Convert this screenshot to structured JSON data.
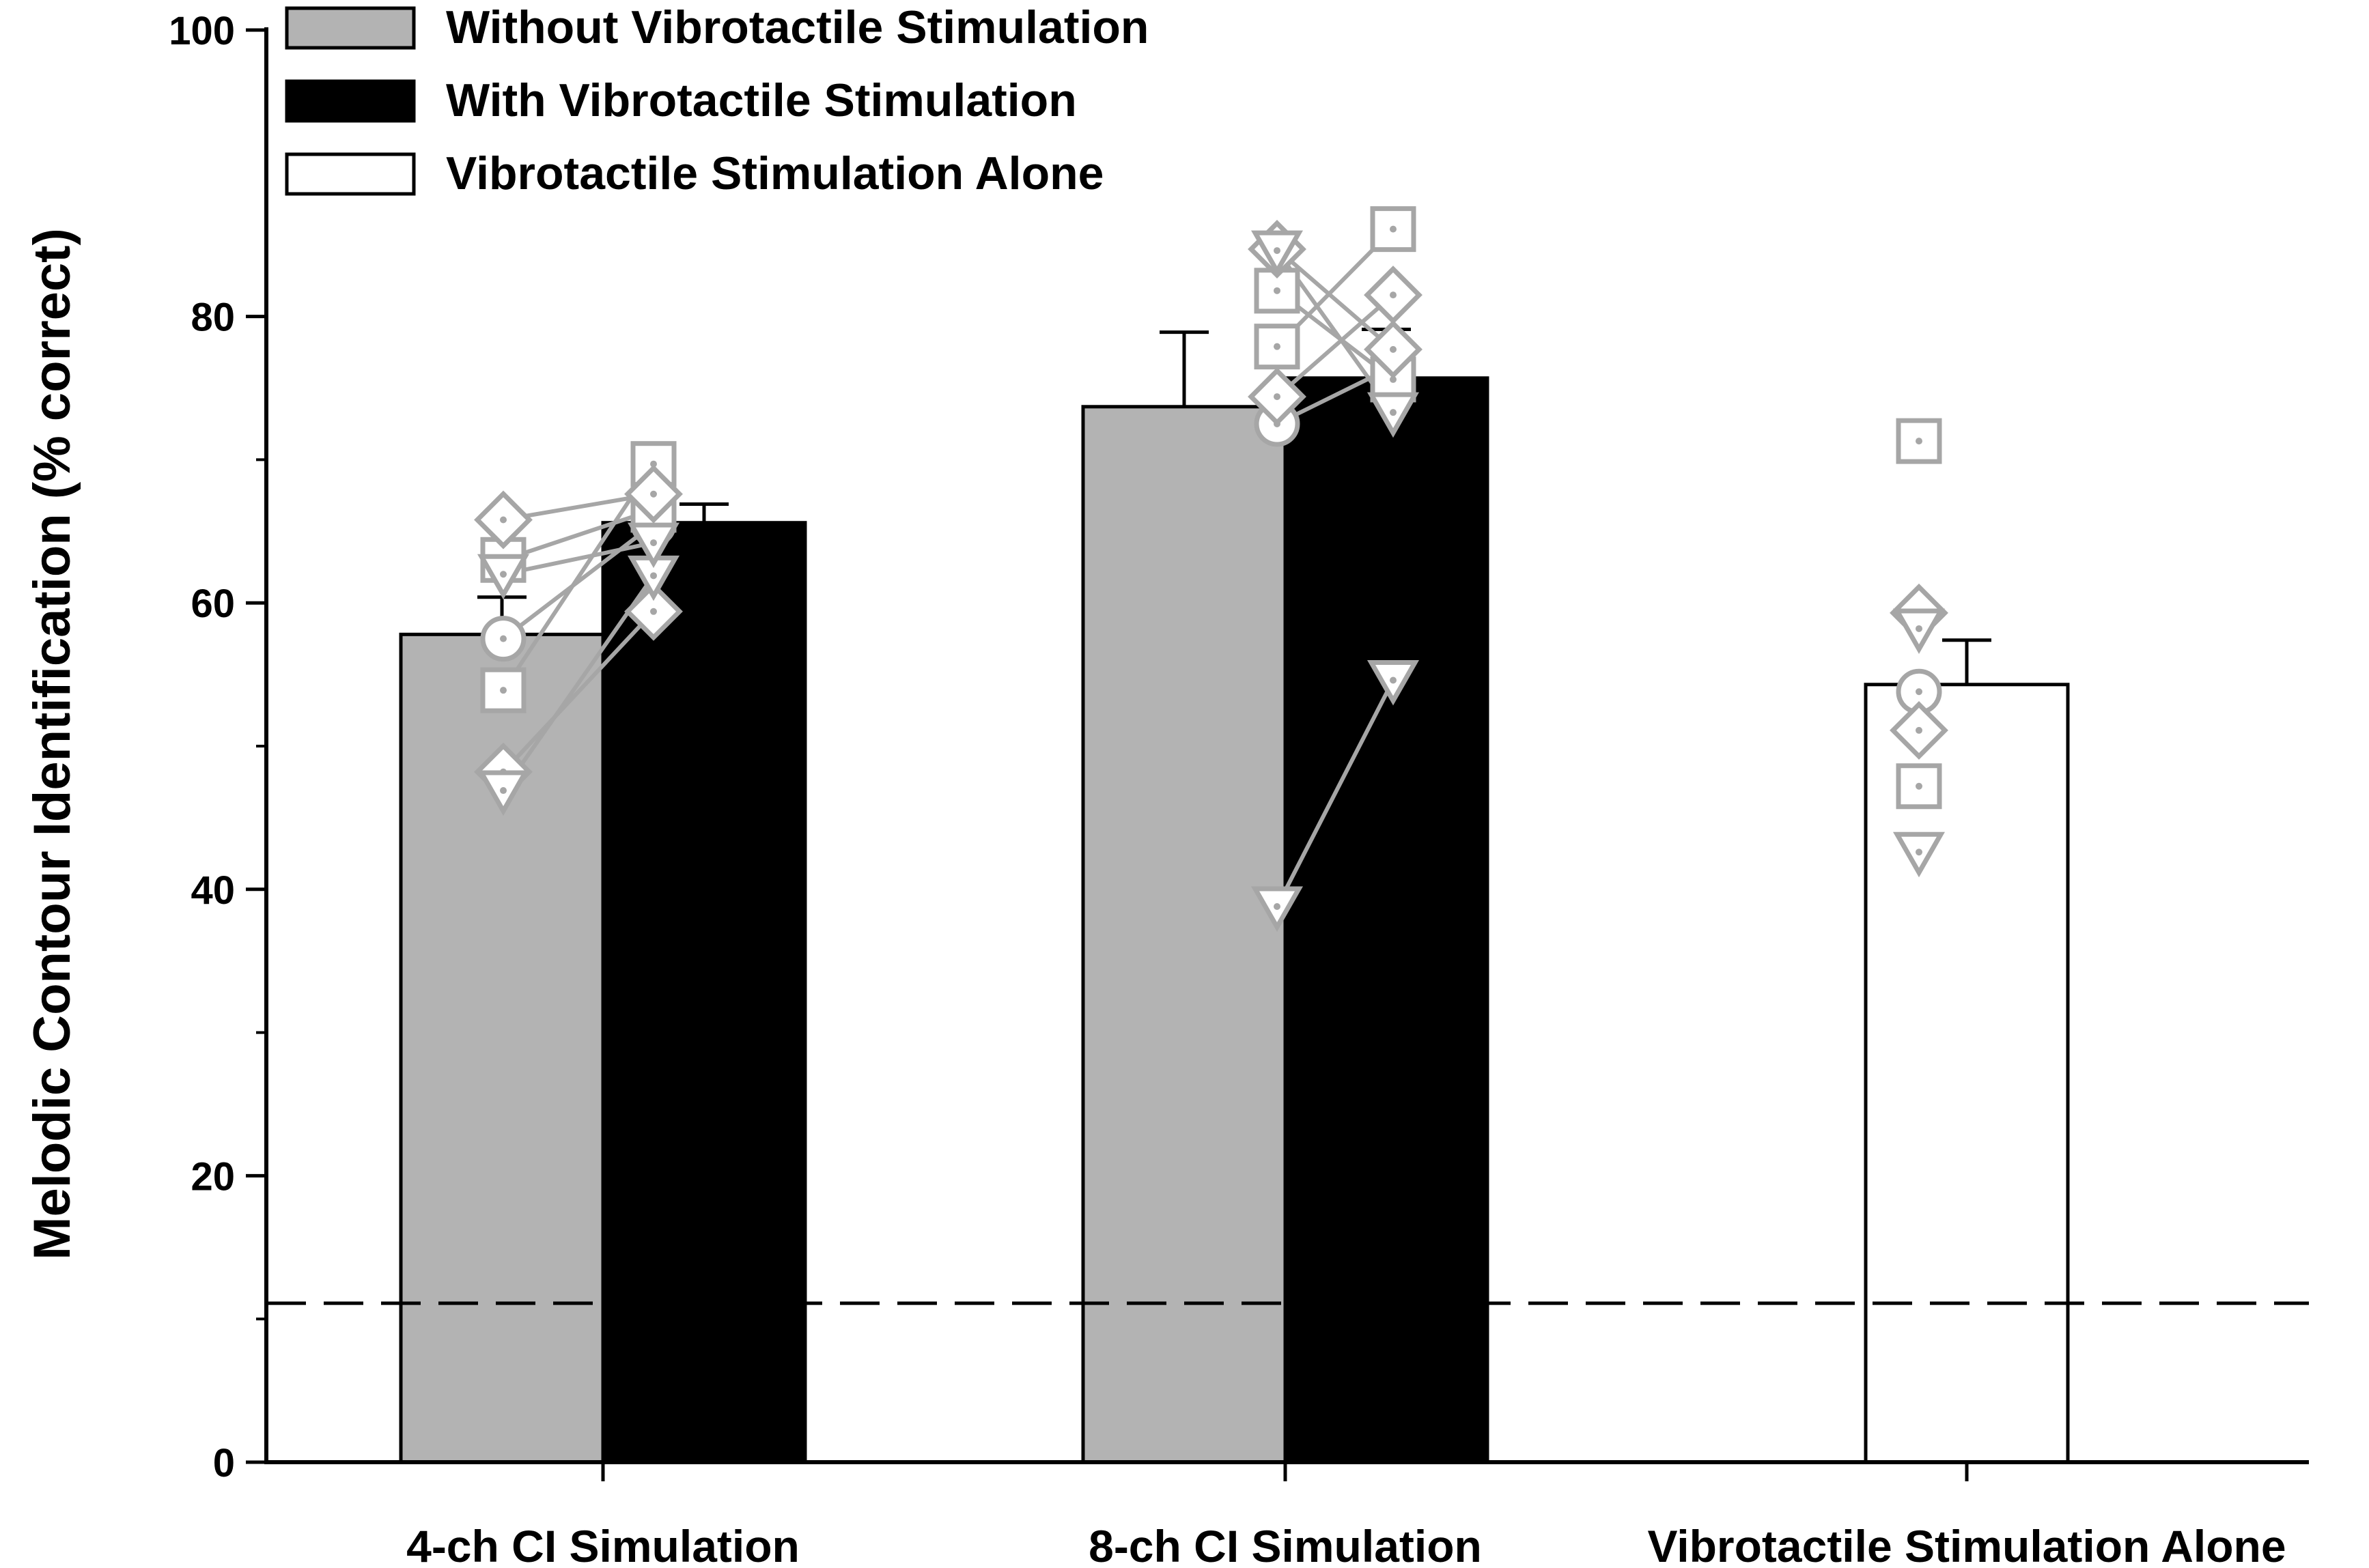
{
  "chart_data": {
    "type": "bar",
    "title": "",
    "xlabel": "",
    "ylabel": "Melodic Contour Identification (% correct)",
    "ylim": [
      0,
      100
    ],
    "yticks": [
      0,
      20,
      40,
      60,
      80,
      100
    ],
    "categories": [
      "4-ch CI Simulation",
      "8-ch CI Simulation",
      "Vibrotactile Stimulation Alone"
    ],
    "chance_level": 11.1,
    "colors": {
      "without": "#b3b3b3",
      "with": "#000000",
      "alone": "#ffffff",
      "markers": "#a6a6a6"
    },
    "series": [
      {
        "name": "Without Vibrotactile Stimulation",
        "color": "#b3b3b3",
        "values": [
          57.8,
          73.7,
          null
        ],
        "errors": [
          2.6,
          5.2,
          null
        ]
      },
      {
        "name": "With Vibrotactile Stimulation",
        "color": "#000000",
        "values": [
          65.6,
          75.7,
          null
        ],
        "errors": [
          1.3,
          3.4,
          null
        ]
      },
      {
        "name": "Vibrotactile Stimulation Alone",
        "color": "#ffffff",
        "values": [
          null,
          null,
          54.3
        ],
        "errors": [
          null,
          null,
          3.1
        ]
      }
    ],
    "participants": [
      {
        "marker": "circle",
        "values": [
          [
            57.5,
            65.5
          ],
          [
            72.5,
            76.5
          ],
          53.8
        ]
      },
      {
        "marker": "square",
        "values": [
          [
            53.9,
            69.7
          ],
          [
            77.9,
            86.1
          ],
          47.2
        ]
      },
      {
        "marker": "square",
        "values": [
          [
            63.0,
            66.5
          ],
          [
            81.8,
            75.6
          ],
          71.3
        ]
      },
      {
        "marker": "diamond",
        "values": [
          [
            65.8,
            67.6
          ],
          [
            74.4,
            81.5
          ],
          59.3
        ]
      },
      {
        "marker": "diamond",
        "values": [
          [
            48.2,
            59.4
          ],
          [
            84.7,
            77.7
          ],
          51.1
        ]
      },
      {
        "marker": "triangle-down",
        "values": [
          [
            46.9,
            61.9
          ],
          [
            38.8,
            54.6
          ],
          42.6
        ]
      },
      {
        "marker": "triangle-down",
        "values": [
          [
            62.0,
            64.2
          ],
          [
            84.6,
            73.3
          ],
          58.2
        ]
      }
    ]
  }
}
